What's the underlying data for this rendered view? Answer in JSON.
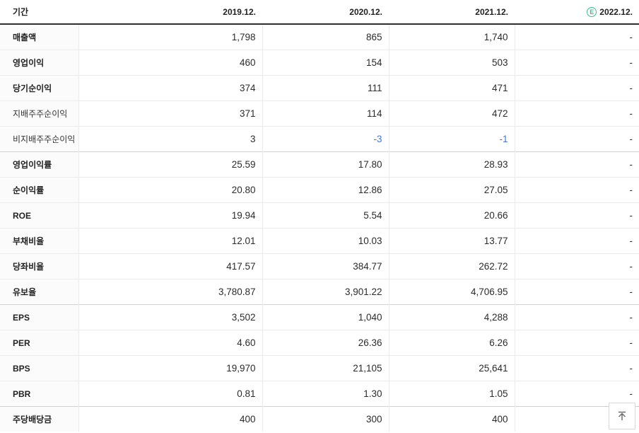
{
  "table": {
    "period_label": "기간",
    "columns": [
      "2019.12.",
      "2020.12.",
      "2021.12.",
      "2022.12."
    ],
    "estimate_icon": "E",
    "rows": [
      {
        "label": "매출액",
        "style": "main",
        "section": false,
        "values": [
          "1,798",
          "865",
          "1,740",
          "-"
        ]
      },
      {
        "label": "영업이익",
        "style": "main",
        "section": false,
        "values": [
          "460",
          "154",
          "503",
          "-"
        ]
      },
      {
        "label": "당기순이익",
        "style": "main",
        "section": false,
        "values": [
          "374",
          "111",
          "471",
          "-"
        ]
      },
      {
        "label": "지배주주순이익",
        "style": "sub",
        "section": false,
        "values": [
          "371",
          "114",
          "472",
          "-"
        ]
      },
      {
        "label": "비지배주주순이익",
        "style": "sub",
        "section": false,
        "values": [
          "3",
          "-3",
          "-1",
          "-"
        ]
      },
      {
        "label": "영업이익률",
        "style": "main",
        "section": true,
        "values": [
          "25.59",
          "17.80",
          "28.93",
          "-"
        ]
      },
      {
        "label": "순이익률",
        "style": "main",
        "section": false,
        "values": [
          "20.80",
          "12.86",
          "27.05",
          "-"
        ]
      },
      {
        "label": "ROE",
        "style": "main",
        "section": false,
        "values": [
          "19.94",
          "5.54",
          "20.66",
          "-"
        ]
      },
      {
        "label": "부채비율",
        "style": "main",
        "section": false,
        "values": [
          "12.01",
          "10.03",
          "13.77",
          "-"
        ]
      },
      {
        "label": "당좌비율",
        "style": "main",
        "section": false,
        "values": [
          "417.57",
          "384.77",
          "262.72",
          "-"
        ]
      },
      {
        "label": "유보율",
        "style": "main",
        "section": false,
        "values": [
          "3,780.87",
          "3,901.22",
          "4,706.95",
          "-"
        ]
      },
      {
        "label": "EPS",
        "style": "main",
        "section": true,
        "values": [
          "3,502",
          "1,040",
          "4,288",
          "-"
        ]
      },
      {
        "label": "PER",
        "style": "main",
        "section": false,
        "values": [
          "4.60",
          "26.36",
          "6.26",
          "-"
        ]
      },
      {
        "label": "BPS",
        "style": "main",
        "section": false,
        "values": [
          "19,970",
          "21,105",
          "25,641",
          "-"
        ]
      },
      {
        "label": "PBR",
        "style": "main",
        "section": false,
        "values": [
          "0.81",
          "1.30",
          "1.05",
          "-"
        ]
      },
      {
        "label": "주당배당금",
        "style": "main",
        "section": true,
        "values": [
          "400",
          "300",
          "400",
          "-"
        ]
      }
    ]
  },
  "colors": {
    "negative_value": "#4178d4",
    "estimate_green": "#35c08a",
    "header_border": "#2f2f2f",
    "row_border": "#ebebeb"
  },
  "scroll_top_button": {
    "label": "맨 위로"
  }
}
